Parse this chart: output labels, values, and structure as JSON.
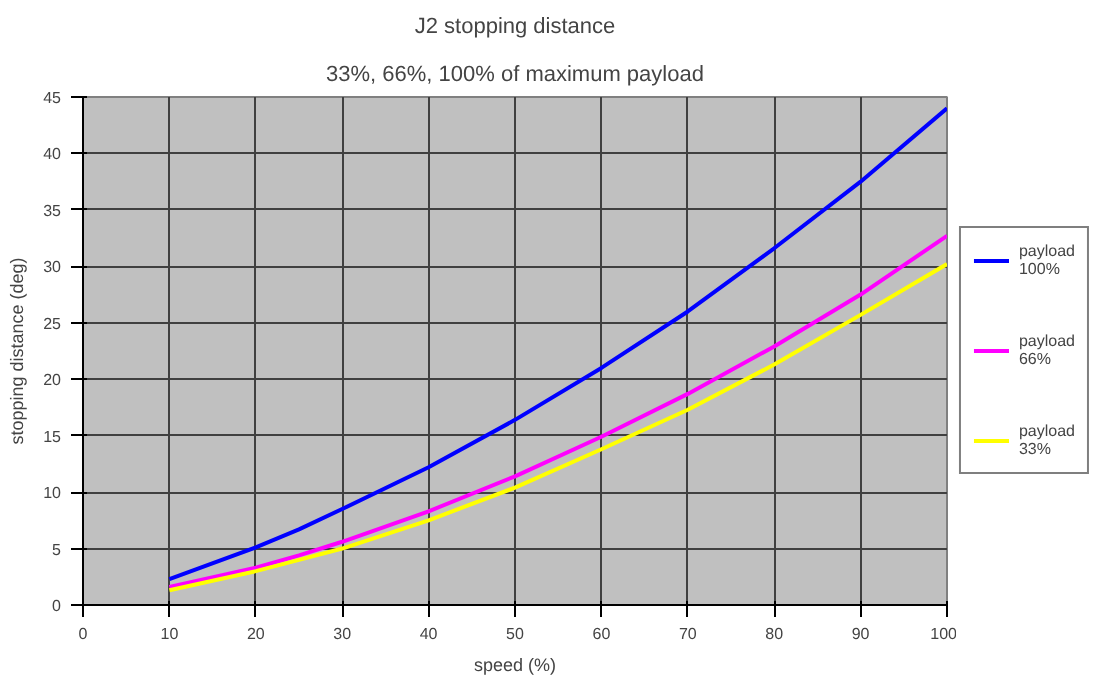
{
  "chart_data": {
    "type": "line",
    "title": "J2 stopping distance",
    "subtitle": "33%, 66%, 100% of maximum payload",
    "xlabel": "speed (%)",
    "ylabel": "stopping distance (deg)",
    "x": [
      10,
      20,
      25,
      30,
      40,
      50,
      60,
      70,
      80,
      90,
      100
    ],
    "series": [
      {
        "name": "payload 100%",
        "color": "#0000ff",
        "values": [
          2.3,
          5.1,
          6.7,
          8.5,
          12.2,
          16.4,
          21.0,
          26.0,
          31.6,
          37.5,
          44.0
        ]
      },
      {
        "name": "payload 66%",
        "color": "#ff00ff",
        "values": [
          1.6,
          3.3,
          4.4,
          5.6,
          8.3,
          11.4,
          14.9,
          18.7,
          22.9,
          27.5,
          32.7
        ]
      },
      {
        "name": "payload 33%",
        "color": "#ffff00",
        "values": [
          1.3,
          3.0,
          4.0,
          5.0,
          7.5,
          10.4,
          13.8,
          17.3,
          21.3,
          25.7,
          30.2
        ]
      }
    ],
    "xlim": [
      0,
      100
    ],
    "xticks": [
      0,
      10,
      20,
      30,
      40,
      50,
      60,
      70,
      80,
      90,
      100
    ],
    "ylim": [
      0,
      45
    ],
    "yticks": [
      0,
      5,
      10,
      15,
      20,
      25,
      30,
      35,
      40,
      45
    ],
    "grid": true,
    "legend": "right",
    "marker": "none",
    "line_style": "solid"
  }
}
